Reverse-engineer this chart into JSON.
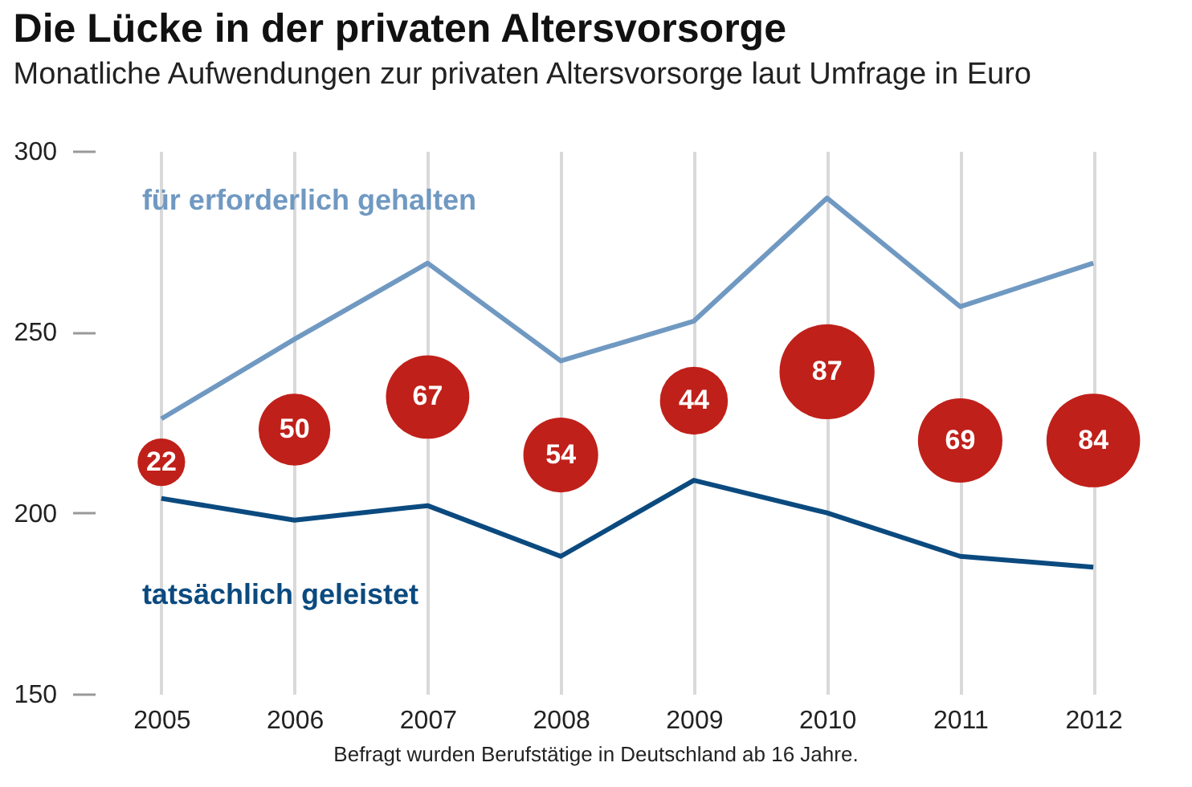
{
  "chart_data": {
    "type": "line",
    "title": "Die Lücke in der privaten Altersvorsorge",
    "subtitle": "Monatliche Aufwendungen zur privaten Altersvorsorge laut Umfrage in Euro",
    "categories": [
      "2005",
      "2006",
      "2007",
      "2008",
      "2009",
      "2010",
      "2011",
      "2012"
    ],
    "series": [
      {
        "name": "für erforderlich gehalten",
        "color": "#7099c2",
        "values": [
          226,
          248,
          269,
          242,
          253,
          287,
          257,
          269
        ]
      },
      {
        "name": "tatsächlich geleistet",
        "color": "#0b4a7f",
        "values": [
          204,
          198,
          202,
          188,
          209,
          200,
          188,
          185
        ]
      },
      {
        "type": "bubble",
        "color": "#c0201a",
        "values": [
          214,
          223,
          232,
          216,
          231,
          239,
          220,
          220
        ],
        "sizes": [
          0.25,
          0.57,
          0.77,
          0.62,
          0.51,
          1,
          0.79,
          0.97
        ]
      }
    ],
    "ylim": [
      150,
      300
    ],
    "yticks": [
      150,
      200,
      250,
      300
    ],
    "grid": "x",
    "legend": false,
    "annotations": [
      {
        "text": "22",
        "x": "2005",
        "y": 214
      },
      {
        "text": "50",
        "x": "2006",
        "y": 223
      },
      {
        "text": "67",
        "x": "2007",
        "y": 232
      },
      {
        "text": "54",
        "x": "2008",
        "y": 216
      },
      {
        "text": "44",
        "x": "2009",
        "y": 231
      },
      {
        "text": "87",
        "x": "2010",
        "y": 239
      },
      {
        "text": "69",
        "x": "2011",
        "y": 220
      },
      {
        "text": "84",
        "x": "2012",
        "y": 220
      },
      "Befragt wurden Berufstätige in Deutschland ab 16 Jahre."
    ]
  }
}
